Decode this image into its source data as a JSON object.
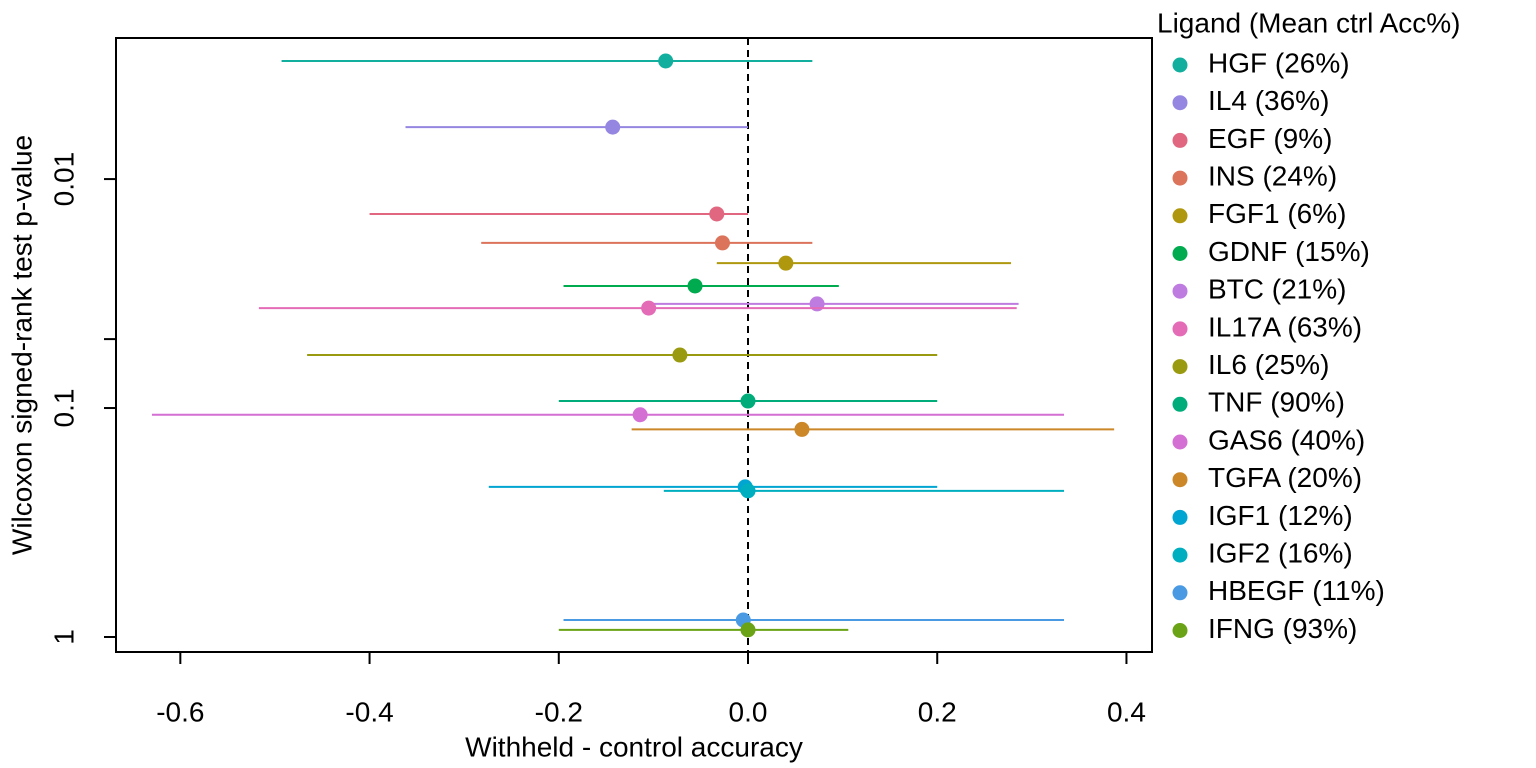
{
  "chart_data": {
    "type": "scatter",
    "xlabel": "Withheld - control accuracy",
    "ylabel": "Wilcoxon signed-rank test p-value",
    "legend_title": "Ligand (Mean ctrl Acc%)",
    "legend_position": "right",
    "log_y": true,
    "vline": 0,
    "xlim": [
      -0.668,
      0.427
    ],
    "xticks": [
      {
        "value": -0.6,
        "label": "-0.6"
      },
      {
        "value": -0.4,
        "label": "-0.4"
      },
      {
        "value": -0.2,
        "label": "-0.2"
      },
      {
        "value": 0,
        "label": "0.0"
      },
      {
        "value": 0.2,
        "label": "0.2"
      },
      {
        "value": 0.4,
        "label": "0.4"
      }
    ],
    "ylim": [
      1.163,
      0.00242
    ],
    "yticks": [
      0.01,
      {
        "value": 0.05,
        "label": null
      },
      0.1,
      1
    ],
    "series": [
      {
        "name": "HGF (26%)",
        "color": "#12AF9E",
        "x": -0.087,
        "xmin": -0.493,
        "xmax": 0.068,
        "y": 0.00305
      },
      {
        "name": "IL4 (36%)",
        "color": "#9486E1",
        "x": -0.143,
        "xmin": -0.362,
        "xmax": 0,
        "y": 0.00593
      },
      {
        "name": "EGF (9%)",
        "color": "#E0677F",
        "x": -0.033,
        "xmin": -0.4,
        "xmax": 0,
        "y": 0.0142
      },
      {
        "name": "INS (24%)",
        "color": "#DC735B",
        "x": -0.027,
        "xmin": -0.282,
        "xmax": 0.068,
        "y": 0.019
      },
      {
        "name": "FGF1 (6%)",
        "color": "#B0980E",
        "x": 0.04,
        "xmin": -0.033,
        "xmax": 0.278,
        "y": 0.0233
      },
      {
        "name": "GDNF (15%)",
        "color": "#00AA4E",
        "x": -0.056,
        "xmin": -0.195,
        "xmax": 0.096,
        "y": 0.0293
      },
      {
        "name": "BTC (21%)",
        "color": "#BE7BE0",
        "x": 0.073,
        "xmin": -0.101,
        "xmax": 0.286,
        "y": 0.0351
      },
      {
        "name": "IL17A (63%)",
        "color": "#E46BB6",
        "x": -0.105,
        "xmin": -0.517,
        "xmax": 0.284,
        "y": 0.0366
      },
      {
        "name": "IL6 (25%)",
        "color": "#9A9A10",
        "x": -0.072,
        "xmin": -0.466,
        "xmax": 0.2,
        "y": 0.0587
      },
      {
        "name": "TNF (90%)",
        "color": "#00AD7A",
        "x": 0,
        "xmin": -0.2,
        "xmax": 0.2,
        "y": 0.0932
      },
      {
        "name": "GAS6 (40%)",
        "color": "#D46FD3",
        "x": -0.114,
        "xmin": -0.63,
        "xmax": 0.334,
        "y": 0.107
      },
      {
        "name": "TGFA (20%)",
        "color": "#CC8729",
        "x": 0.057,
        "xmin": -0.123,
        "xmax": 0.387,
        "y": 0.124
      },
      {
        "name": "IGF1 (12%)",
        "color": "#00A5D1",
        "x": -0.003,
        "xmin": -0.274,
        "xmax": 0.2,
        "y": 0.221
      },
      {
        "name": "IGF2 (16%)",
        "color": "#00AFBF",
        "x": 0,
        "xmin": -0.089,
        "xmax": 0.334,
        "y": 0.23
      },
      {
        "name": "HBEGF (11%)",
        "color": "#4A9AE3",
        "x": -0.005,
        "xmin": -0.195,
        "xmax": 0.334,
        "y": 0.843
      },
      {
        "name": "IFNG (93%)",
        "color": "#6AA315",
        "x": 0,
        "xmin": -0.2,
        "xmax": 0.106,
        "y": 0.931
      }
    ]
  }
}
